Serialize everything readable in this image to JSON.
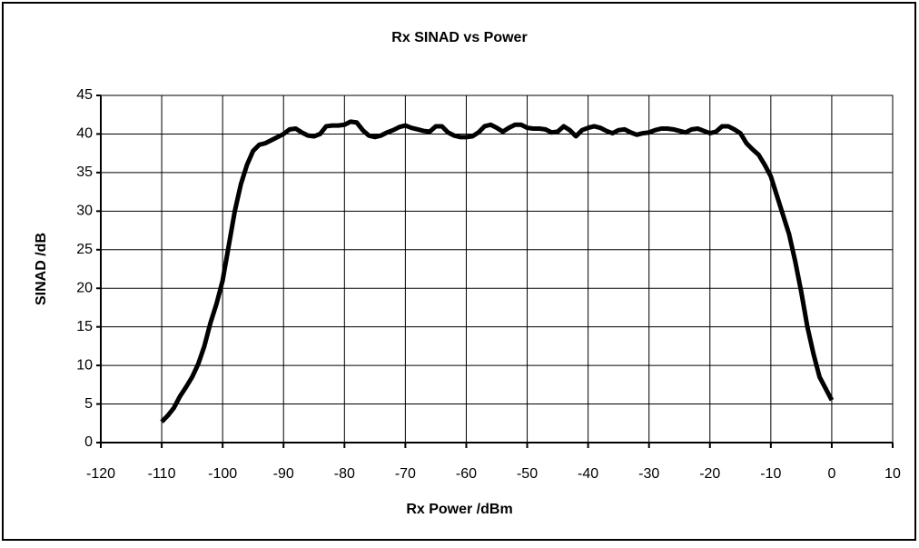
{
  "chart_data": {
    "type": "line",
    "title": "Rx SINAD vs Power",
    "xlabel": "Rx Power /dBm",
    "ylabel": "SINAD /dB",
    "xlim": [
      -120,
      10
    ],
    "xticks": [
      -120,
      -110,
      -100,
      -90,
      -80,
      -70,
      -60,
      -50,
      -40,
      -30,
      -20,
      -10,
      0,
      10
    ],
    "ylim": [
      0,
      45
    ],
    "yticks": [
      0,
      5,
      10,
      15,
      20,
      25,
      30,
      35,
      40,
      45
    ],
    "grid": true,
    "x": [
      -110,
      -109,
      -108,
      -107,
      -106,
      -105,
      -104,
      -103,
      -102,
      -101,
      -100,
      -99,
      -98,
      -97,
      -96,
      -95,
      -94,
      -93,
      -92,
      -91,
      -90,
      -89,
      -88,
      -87,
      -86,
      -85,
      -84,
      -83,
      -82,
      -81,
      -80,
      -79,
      -78,
      -77,
      -76,
      -75,
      -74,
      -73,
      -72,
      -71,
      -70,
      -69,
      -68,
      -67,
      -66,
      -65,
      -64,
      -63,
      -62,
      -61,
      -60,
      -59,
      -58,
      -57,
      -56,
      -55,
      -54,
      -53,
      -52,
      -51,
      -50,
      -49,
      -48,
      -47,
      -46,
      -45,
      -44,
      -43,
      -42,
      -41,
      -40,
      -39,
      -38,
      -37,
      -36,
      -35,
      -34,
      -33,
      -32,
      -31,
      -30,
      -29,
      -28,
      -27,
      -26,
      -25,
      -24,
      -23,
      -22,
      -21,
      -20,
      -19,
      -18,
      -17,
      -16,
      -15,
      -14,
      -13,
      -12,
      -11,
      -10,
      -9,
      -8,
      -7,
      -6,
      -5,
      -4,
      -3,
      -2,
      -1,
      0
    ],
    "series": [
      {
        "name": "SINAD",
        "color": "#000000",
        "values": [
          2.7,
          3.5,
          4.5,
          6,
          7.2,
          8.5,
          10.2,
          12.5,
          15.5,
          18,
          21,
          25.5,
          30,
          33.5,
          36,
          37.8,
          38.6,
          38.8,
          39.2,
          39.6,
          40,
          40.6,
          40.7,
          40.2,
          39.8,
          39.7,
          40,
          41,
          41.1,
          41.1,
          41.2,
          41.6,
          41.5,
          40.5,
          39.8,
          39.6,
          39.8,
          40.2,
          40.5,
          40.9,
          41.1,
          40.8,
          40.6,
          40.4,
          40.3,
          41,
          41,
          40.2,
          39.8,
          39.6,
          39.6,
          39.7,
          40.2,
          41,
          41.2,
          40.8,
          40.3,
          40.8,
          41.2,
          41.2,
          40.8,
          40.7,
          40.7,
          40.6,
          40.2,
          40.3,
          41,
          40.5,
          39.7,
          40.5,
          40.8,
          41,
          40.8,
          40.4,
          40.1,
          40.5,
          40.6,
          40.2,
          39.9,
          40.1,
          40.2,
          40.5,
          40.7,
          40.7,
          40.6,
          40.4,
          40.2,
          40.6,
          40.7,
          40.4,
          40.1,
          40.3,
          41,
          41,
          40.6,
          40.1,
          38.8,
          38,
          37.3,
          36,
          34.5,
          32,
          29.5,
          27,
          23.5,
          19.5,
          15,
          11.5,
          8.5,
          7,
          5.5
        ]
      }
    ]
  }
}
